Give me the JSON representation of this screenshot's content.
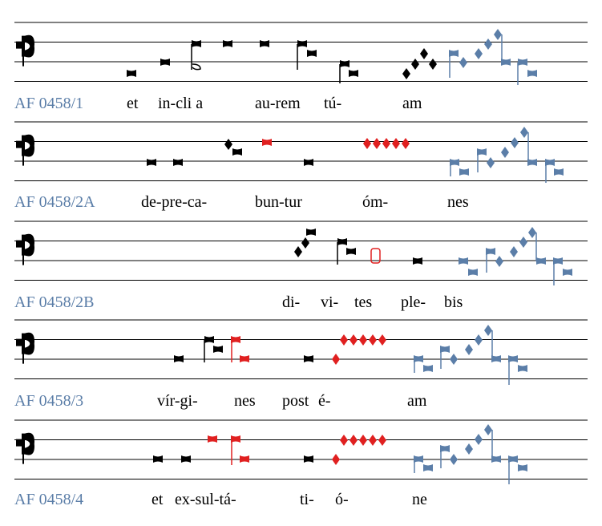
{
  "colors": {
    "black": "#000000",
    "red": "#e02020",
    "blue": "#5b7ea8",
    "staff": "#000000"
  },
  "clef": "C-clef",
  "systems": [
    {
      "label": "AF 0458/1",
      "syllables": [
        "et",
        "in-cli a",
        "au-rem",
        "tú-",
        "am"
      ]
    },
    {
      "label": "AF 0458/2A",
      "syllables": [
        "de-pre-ca-",
        "bun-tur",
        "óm-",
        "nes"
      ]
    },
    {
      "label": "AF 0458/2B",
      "syllables": [
        "di-",
        "vi-",
        "tes",
        "ple-",
        "bis"
      ]
    },
    {
      "label": "AF 0458/3",
      "syllables": [
        "vír-gi-",
        "nes",
        "post",
        "é-",
        "am"
      ]
    },
    {
      "label": "AF 0458/4",
      "syllables": [
        "et",
        "ex-sul-tá-",
        "ti-",
        "ó-",
        "ne"
      ]
    }
  ]
}
